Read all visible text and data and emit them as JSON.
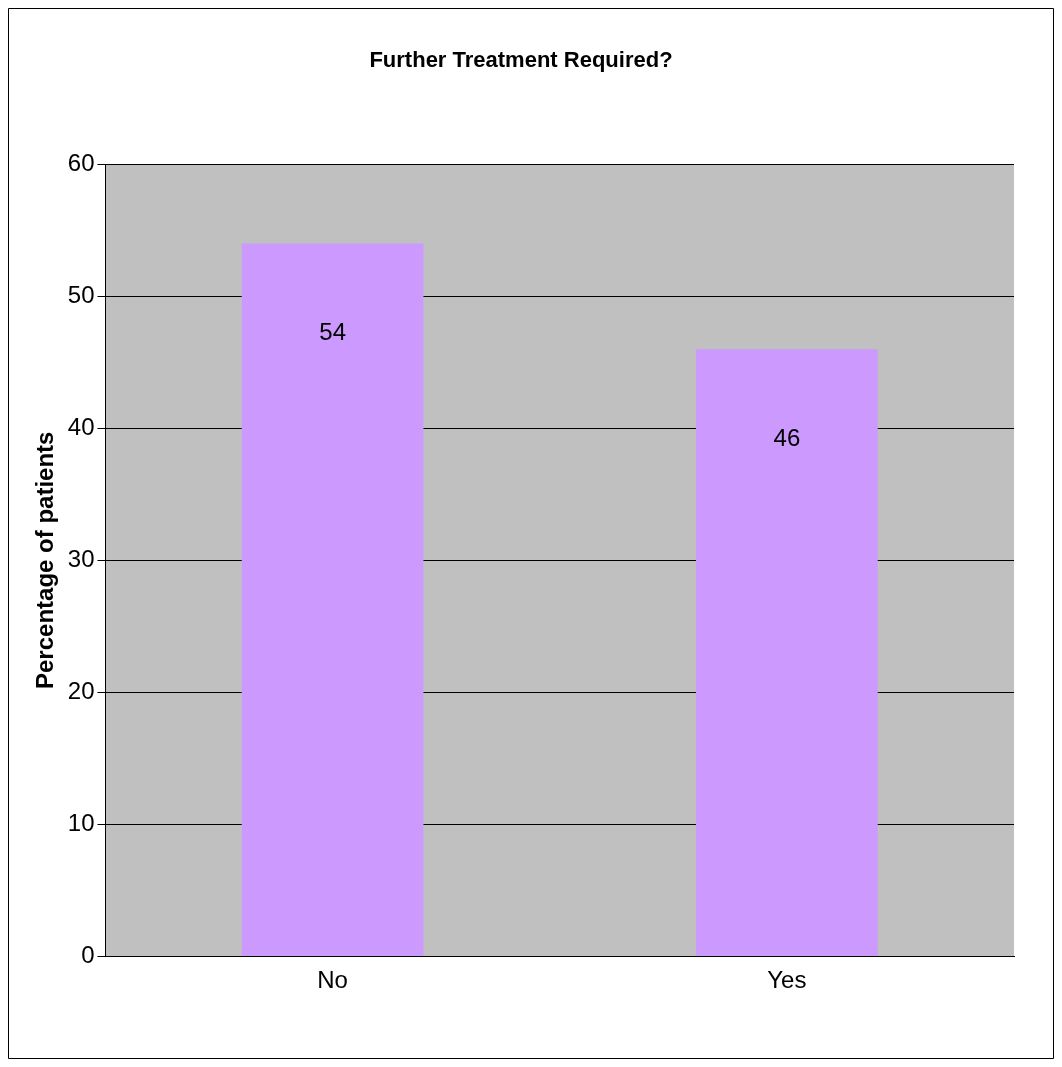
{
  "chart_data": {
    "type": "bar",
    "title": "Further Treatment Required?",
    "ylabel": "Percentage of patients",
    "categories": [
      "No",
      "Yes"
    ],
    "values": [
      54,
      46
    ],
    "color": "#cc99ff",
    "ylim": [
      0,
      60
    ],
    "yticks": [
      0,
      10,
      20,
      30,
      40,
      50,
      60
    ],
    "grid": "y",
    "data_labels": true,
    "legend": false
  }
}
